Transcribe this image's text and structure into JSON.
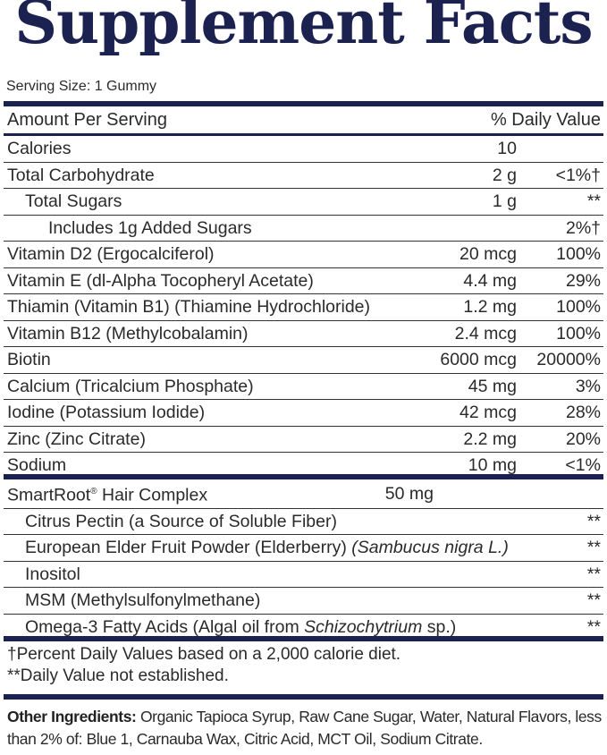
{
  "title": "Supplement Facts",
  "serving_size": "Serving Size: 1 Gummy",
  "header": {
    "amount": "Amount Per Serving",
    "daily_value": "% Daily Value"
  },
  "nutrients": [
    {
      "name": "Calories",
      "amount": "10",
      "dv": ""
    },
    {
      "name": "Total Carbohydrate",
      "amount": "2 g",
      "dv": "<1%†"
    },
    {
      "name": "Total Sugars",
      "amount": "1 g",
      "dv": "**"
    },
    {
      "name": "Includes 1g Added Sugars",
      "amount": "",
      "dv": "2%†"
    },
    {
      "name": "Vitamin D2 (Ergocalciferol)",
      "amount": "20 mcg",
      "dv": "100%"
    },
    {
      "name": "Vitamin E (dl-Alpha Tocopheryl Acetate)",
      "amount": "4.4 mg",
      "dv": "29%"
    },
    {
      "name": "Thiamin (Vitamin B1) (Thiamine Hydrochloride)",
      "amount": "1.2 mg",
      "dv": "100%"
    },
    {
      "name": "Vitamin B12 (Methylcobalamin)",
      "amount": "2.4 mcg",
      "dv": "100%"
    },
    {
      "name": "Biotin",
      "amount": "6000 mcg",
      "dv": "20000%"
    },
    {
      "name": "Calcium (Tricalcium Phosphate)",
      "amount": "45 mg",
      "dv": "3%"
    },
    {
      "name": "Iodine (Potassium Iodide)",
      "amount": "42 mcg",
      "dv": "28%"
    },
    {
      "name": "Zinc (Zinc Citrate)",
      "amount": "2.2 mg",
      "dv": "20%"
    },
    {
      "name": "Sodium",
      "amount": "10 mg",
      "dv": "<1%"
    }
  ],
  "complex": {
    "name": "SmartRoot",
    "reg": "®",
    "name_rest": " Hair Complex",
    "amount": "50 mg",
    "items": [
      {
        "name": "Citrus Pectin (a Source of Soluble Fiber)",
        "italic": "",
        "after": "",
        "dv": "**"
      },
      {
        "name": "European Elder Fruit Powder (Elderberry) ",
        "italic": "(Sambucus nigra L.)",
        "after": "",
        "dv": "**"
      },
      {
        "name": "Inositol",
        "italic": "",
        "after": "",
        "dv": "**"
      },
      {
        "name": "MSM (Methylsulfonylmethane)",
        "italic": "",
        "after": "",
        "dv": "**"
      },
      {
        "name": "Omega-3 Fatty Acids (Algal oil from ",
        "italic": "Schizochytrium",
        "after": " sp.)",
        "dv": "**"
      }
    ]
  },
  "footnotes": [
    "†Percent Daily Values based on a 2,000 calorie diet.",
    "**Daily Value not established."
  ],
  "other_ingredients": {
    "label": "Other Ingredients:",
    "text": " Organic Tapioca Syrup, Raw Cane Sugar, Water, Natural Flavors, less than 2% of: Blue 1, Carnauba Wax, Citric Acid, MCT Oil, Sodium Citrate."
  },
  "colors": {
    "navy": "#1c2250"
  }
}
